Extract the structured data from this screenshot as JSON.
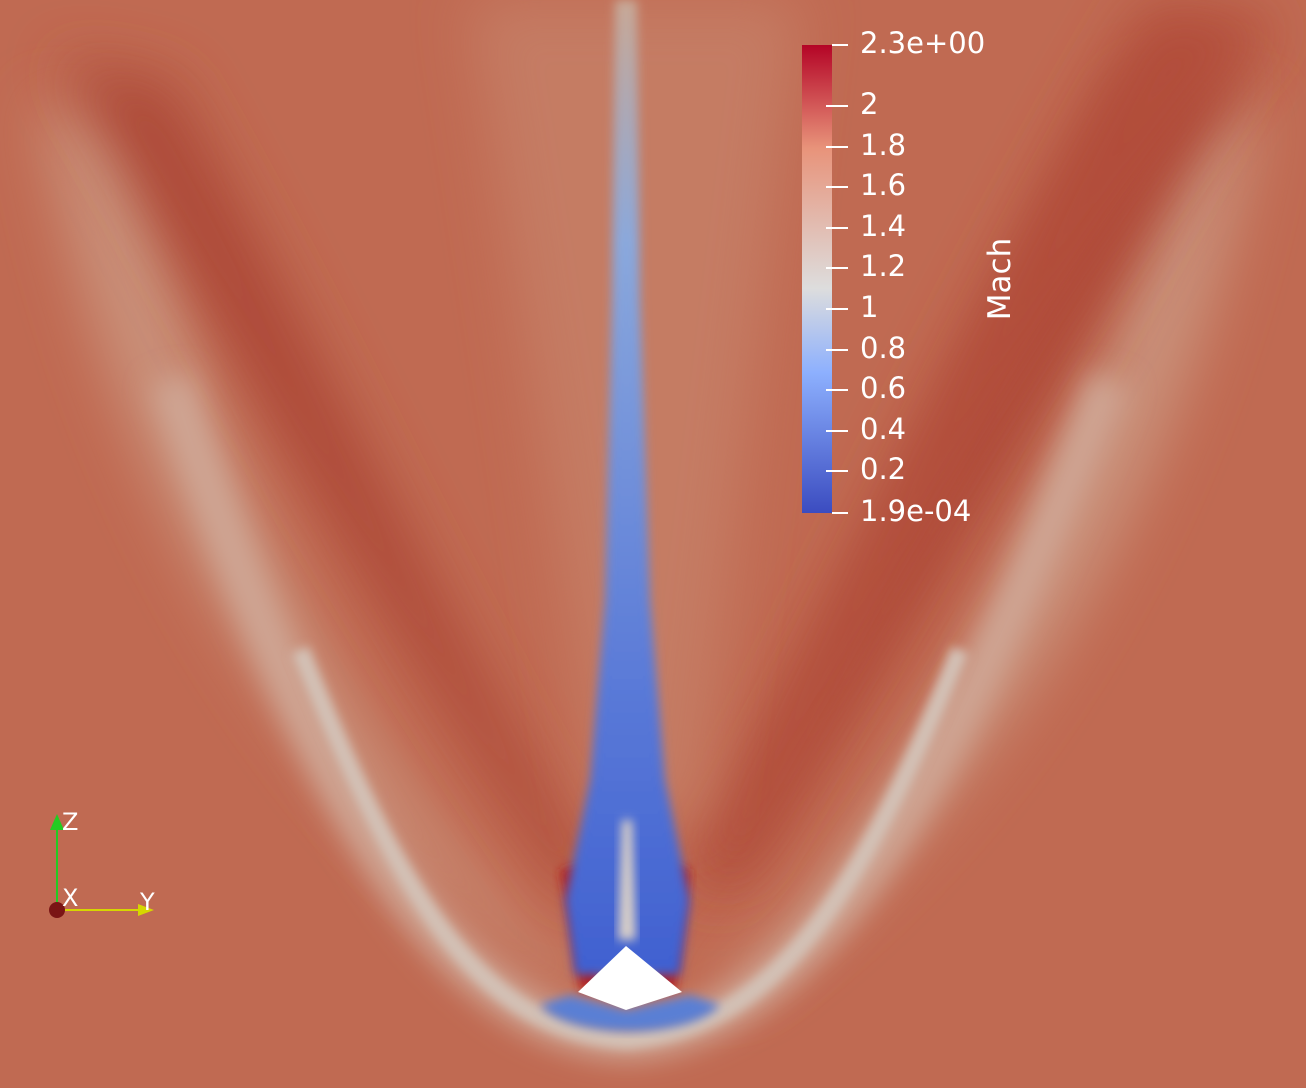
{
  "scalar_bar": {
    "title": "Mach",
    "max_label": "2.3e+00",
    "min_label": "1.9e-04",
    "ticks": [
      "2",
      "1.8",
      "1.6",
      "1.4",
      "1.2",
      "1",
      "0.8",
      "0.6",
      "0.4",
      "0.2"
    ],
    "colormap": "cool-to-warm",
    "colors": {
      "low": "#3b4cc0",
      "mid": "#dddddd",
      "high": "#b40426"
    }
  },
  "orientation_axes": {
    "z": "Z",
    "x": "X",
    "y": "Y"
  }
}
